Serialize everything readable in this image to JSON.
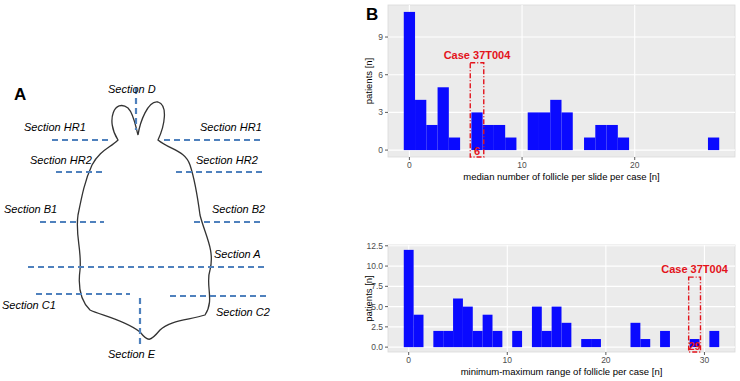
{
  "panel_a": {
    "label": "A",
    "sections": [
      "Section D",
      "Section HR1",
      "Section HR1",
      "Section HR2",
      "Section HR2",
      "Section B1",
      "Section B2",
      "Section A",
      "Section C1",
      "Section C2",
      "Section E"
    ]
  },
  "panel_b": {
    "label": "B"
  },
  "chart_data": [
    {
      "type": "histogram",
      "x_label": "median number of follicle per slide per case [n]",
      "y_label": "patients [n]",
      "bins": [
        -0.5,
        0.5,
        1.5,
        2.5,
        3.5,
        4.5,
        5.5,
        6.5,
        7.5,
        8.5,
        9.5,
        10.5,
        11.5,
        12.5,
        13.5,
        14.5,
        15.5,
        16.5,
        17.5,
        18.5,
        19.5,
        20.5,
        21.5,
        22.5,
        23.5,
        24.5,
        25.5,
        26.5,
        27.5
      ],
      "values": [
        11,
        4,
        2,
        5,
        1,
        0,
        3,
        2,
        2,
        1,
        0,
        3,
        3,
        4,
        3,
        0,
        1,
        2,
        2,
        1,
        0,
        0,
        0,
        0,
        0,
        0,
        0,
        1
      ],
      "color": "#0a0aff",
      "xlim": [
        -1.9,
        28.9
      ],
      "xticks": [
        0,
        10,
        20
      ],
      "ylim": [
        -0.55,
        11.55
      ],
      "yticks": [
        0,
        3,
        6,
        9
      ],
      "grid": true,
      "annotations": [
        {
          "text": "Case 37T004",
          "x": 6,
          "label": "6",
          "color": "#e3131b"
        }
      ]
    },
    {
      "type": "histogram",
      "x_label": "minimum-maximum range of follicle per case [n]",
      "y_label": "patients [n]",
      "bins": [
        -0.5,
        0.5,
        1.5,
        2.5,
        3.5,
        4.5,
        5.5,
        6.5,
        7.5,
        8.5,
        9.5,
        10.5,
        11.5,
        12.5,
        13.5,
        14.5,
        15.5,
        16.5,
        17.5,
        18.5,
        19.5,
        20.5,
        21.5,
        22.5,
        23.5,
        24.5,
        25.5,
        26.5,
        27.5,
        28.5,
        29.5,
        30.5,
        31.5
      ],
      "values": [
        12,
        4,
        0,
        2,
        2,
        6,
        5,
        2,
        4,
        2,
        0,
        2,
        0,
        5,
        2,
        5,
        3,
        0,
        1,
        1,
        0,
        0,
        0,
        3,
        1,
        0,
        2,
        0,
        0,
        1,
        0,
        2
      ],
      "color": "#0a0aff",
      "xlim": [
        -2.1,
        33.1
      ],
      "xticks": [
        0,
        10,
        20,
        30
      ],
      "ylim": [
        -0.6,
        12.6
      ],
      "yticks": [
        {
          "value": 0,
          "label": "0.0"
        },
        {
          "value": 2.5,
          "label": "2.5"
        },
        {
          "value": 5,
          "label": "5.0"
        },
        {
          "value": 7.5,
          "label": "7.5"
        },
        {
          "value": 10,
          "label": "10.0"
        },
        {
          "value": 12.5,
          "label": "12.5"
        }
      ],
      "grid": true,
      "annotations": [
        {
          "text": "Case 37T004",
          "x": 29,
          "label": "29",
          "color": "#e3131b"
        }
      ]
    }
  ]
}
